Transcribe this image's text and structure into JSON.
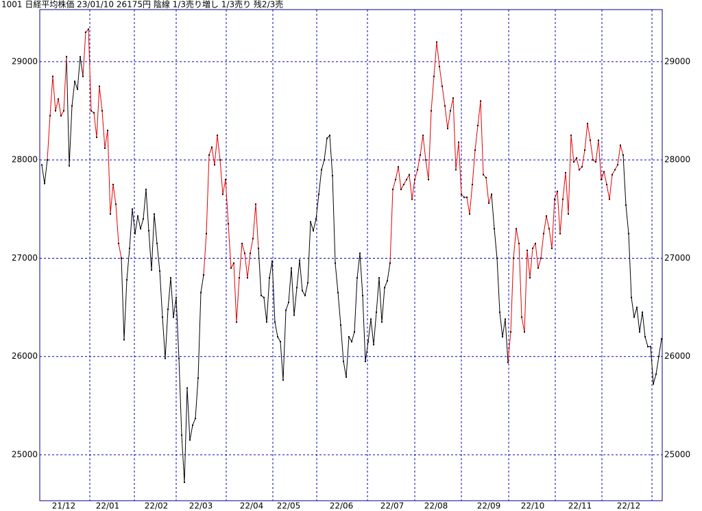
{
  "chart_data": {
    "type": "line",
    "title": "1001 日経平均株価 23/01/10 26175円 陰線 1/3売り増し 1/3売り 残2/3売",
    "series": [
      {
        "color": "#000000",
        "values": [
          27950,
          27760,
          28000,
          null,
          null,
          null,
          null,
          null,
          null,
          29050,
          27940,
          28550,
          28800,
          28720,
          29050,
          28850,
          null,
          null,
          null,
          null,
          null,
          null,
          null,
          null,
          null,
          null,
          null,
          null,
          null,
          27000,
          26170,
          26780,
          27100,
          27500,
          27250,
          27430,
          27300,
          27400,
          27700,
          27280,
          26880,
          27450,
          27150,
          26870,
          26400,
          25980,
          26480,
          26800,
          26400,
          26600,
          25980,
          25200,
          24720,
          25680,
          25150,
          25300,
          25370,
          25780,
          26650,
          26830,
          null,
          null,
          null,
          null,
          null,
          null,
          null,
          null,
          null,
          null,
          null,
          null,
          null,
          null,
          null,
          null,
          null,
          null,
          null,
          27100,
          26620,
          26600,
          26350,
          26800,
          26970,
          26350,
          26200,
          26150,
          25760,
          26470,
          26550,
          26900,
          26420,
          26700,
          26980,
          26670,
          26620,
          26750,
          27370,
          27280,
          27400,
          27650,
          27900,
          28000,
          28220,
          28250,
          27840,
          26950,
          26650,
          26320,
          25950,
          25790,
          26200,
          26150,
          26250,
          26800,
          27050,
          26620,
          25950,
          26150,
          26380,
          26120,
          26450,
          26800,
          26350,
          26700,
          26770,
          26950,
          null,
          null,
          null,
          null,
          null,
          null,
          null,
          null,
          null,
          null,
          null,
          null,
          null,
          null,
          null,
          null,
          null,
          null,
          null,
          null,
          null,
          null,
          null,
          null,
          null,
          null,
          null,
          null,
          null,
          null,
          null,
          null,
          null,
          null,
          null,
          null,
          27650,
          27300,
          27000,
          26450,
          26200,
          26380,
          25940,
          null,
          null,
          null,
          null,
          null,
          null,
          null,
          null,
          null,
          null,
          null,
          null,
          null,
          null,
          null,
          null,
          null,
          null,
          null,
          null,
          null,
          null,
          null,
          null,
          null,
          null,
          null,
          null,
          null,
          null,
          null,
          null,
          null,
          null,
          null,
          null,
          null,
          null,
          null,
          null,
          null,
          28050,
          27540,
          27250,
          26600,
          26400,
          26500,
          26250,
          26450,
          26200,
          26100,
          26100,
          25720,
          25820,
          26000,
          26180
        ]
      },
      {
        "color": "#e00000",
        "values": [
          null,
          null,
          28000,
          28450,
          28850,
          28500,
          28620,
          28450,
          28500,
          29050,
          null,
          null,
          null,
          null,
          null,
          28850,
          29300,
          29330,
          28500,
          28480,
          28230,
          28750,
          28500,
          28120,
          28300,
          27450,
          27750,
          27550,
          27150,
          27000,
          null,
          null,
          null,
          null,
          null,
          null,
          null,
          null,
          null,
          null,
          null,
          null,
          null,
          null,
          null,
          null,
          null,
          null,
          null,
          null,
          null,
          null,
          null,
          null,
          null,
          null,
          null,
          null,
          null,
          26830,
          27250,
          28050,
          28130,
          27950,
          28250,
          28000,
          27650,
          27800,
          27350,
          26900,
          26950,
          26350,
          26800,
          27150,
          27050,
          26800,
          27050,
          27200,
          27550,
          27100,
          null,
          null,
          null,
          null,
          null,
          null,
          null,
          null,
          null,
          null,
          null,
          null,
          null,
          null,
          null,
          null,
          null,
          null,
          null,
          null,
          null,
          null,
          null,
          null,
          null,
          null,
          null,
          null,
          null,
          null,
          null,
          null,
          null,
          null,
          null,
          null,
          null,
          null,
          null,
          null,
          null,
          null,
          null,
          null,
          null,
          null,
          null,
          26950,
          27700,
          27800,
          27930,
          27700,
          27750,
          27800,
          27850,
          27600,
          27800,
          27900,
          28050,
          28250,
          28000,
          27800,
          28500,
          28850,
          29200,
          28950,
          28750,
          28550,
          28320,
          28500,
          28630,
          27900,
          28180,
          27650,
          27620,
          27620,
          27450,
          27750,
          28100,
          28350,
          28600,
          27850,
          27820,
          27560,
          27650,
          null,
          null,
          null,
          null,
          null,
          25940,
          26250,
          27000,
          27300,
          27150,
          26400,
          26250,
          27080,
          26800,
          27100,
          27150,
          26900,
          27000,
          27250,
          27430,
          27300,
          27100,
          27600,
          27680,
          27250,
          27600,
          27870,
          27450,
          28250,
          27980,
          28020,
          27900,
          27930,
          28100,
          28370,
          28200,
          28000,
          27980,
          28200,
          27800,
          27880,
          27750,
          27600,
          27850,
          27900,
          27950,
          28150,
          28050,
          null,
          null,
          null,
          null,
          null,
          null,
          null,
          null,
          null,
          null,
          null,
          null,
          null,
          null
        ]
      }
    ],
    "ylim": [
      24532,
      29530
    ],
    "yticks": [
      25000,
      26000,
      27000,
      28000,
      29000
    ],
    "xticks": [
      {
        "value": 8,
        "label": "21/12"
      },
      {
        "value": 24,
        "label": "22/01"
      },
      {
        "value": 41.75,
        "label": "22/02"
      },
      {
        "value": 58,
        "label": "22/03"
      },
      {
        "value": 76.5,
        "label": "22/04"
      },
      {
        "value": 90,
        "label": "22/05"
      },
      {
        "value": 109.25,
        "label": "22/06"
      },
      {
        "value": 127.75,
        "label": "22/07"
      },
      {
        "value": 143.75,
        "label": "22/08"
      },
      {
        "value": 163,
        "label": "22/09"
      },
      {
        "value": 179,
        "label": "22/10"
      },
      {
        "value": 196.25,
        "label": "22/11"
      },
      {
        "value": 214,
        "label": "22/12"
      }
    ],
    "xgrid": [
      17.5,
      33.75,
      49,
      67.25,
      84.25,
      100.25,
      118.75,
      136,
      153,
      170.25,
      187.25,
      204.25,
      222.5
    ],
    "grid": true,
    "grid_color": "#0000c0",
    "frame_color": "#000080"
  }
}
